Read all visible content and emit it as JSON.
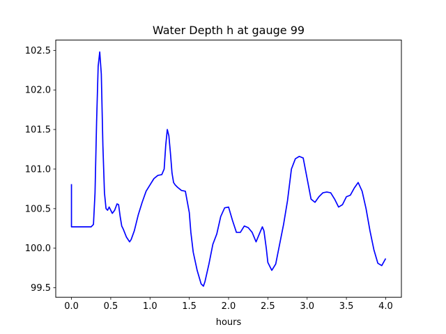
{
  "chart_data": {
    "type": "line",
    "title": "Water Depth h at gauge 99",
    "xlabel": "hours",
    "ylabel": "",
    "xlim": [
      -0.2,
      4.2
    ],
    "ylim": [
      99.38,
      102.63
    ],
    "xticks": [
      0.0,
      0.5,
      1.0,
      1.5,
      2.0,
      2.5,
      3.0,
      3.5,
      4.0
    ],
    "xtick_labels": [
      "0.0",
      "0.5",
      "1.0",
      "1.5",
      "2.0",
      "2.5",
      "3.0",
      "3.5",
      "4.0"
    ],
    "yticks": [
      99.5,
      100.0,
      100.5,
      101.0,
      101.5,
      102.0,
      102.5
    ],
    "ytick_labels": [
      "99.5",
      "100.0",
      "100.5",
      "101.0",
      "101.5",
      "102.0",
      "102.5"
    ],
    "grid": false,
    "color": "#0000ff",
    "series": [
      {
        "x": [
          0.0,
          0.0,
          0.01,
          0.05,
          0.1,
          0.15,
          0.2,
          0.25,
          0.28,
          0.3,
          0.32,
          0.34,
          0.36,
          0.38,
          0.4,
          0.42,
          0.44,
          0.46,
          0.48,
          0.5,
          0.52,
          0.55,
          0.58,
          0.6,
          0.62,
          0.64,
          0.66,
          0.7,
          0.74,
          0.76,
          0.8,
          0.85,
          0.9,
          0.95,
          1.0,
          1.05,
          1.1,
          1.15,
          1.18,
          1.2,
          1.22,
          1.24,
          1.26,
          1.28,
          1.3,
          1.32,
          1.35,
          1.4,
          1.45,
          1.5,
          1.52,
          1.55,
          1.6,
          1.65,
          1.68,
          1.7,
          1.75,
          1.8,
          1.85,
          1.9,
          1.95,
          2.0,
          2.05,
          2.1,
          2.15,
          2.2,
          2.25,
          2.3,
          2.35,
          2.4,
          2.43,
          2.45,
          2.48,
          2.5,
          2.55,
          2.6,
          2.65,
          2.7,
          2.75,
          2.8,
          2.85,
          2.9,
          2.95,
          3.0,
          3.05,
          3.1,
          3.15,
          3.2,
          3.25,
          3.3,
          3.35,
          3.4,
          3.45,
          3.5,
          3.55,
          3.6,
          3.65,
          3.7,
          3.75,
          3.8,
          3.85,
          3.9,
          3.95,
          4.0
        ],
        "values": [
          100.81,
          100.27,
          100.27,
          100.27,
          100.27,
          100.27,
          100.27,
          100.27,
          100.3,
          100.7,
          101.6,
          102.3,
          102.48,
          102.2,
          101.3,
          100.7,
          100.5,
          100.48,
          100.52,
          100.48,
          100.44,
          100.48,
          100.56,
          100.55,
          100.4,
          100.28,
          100.24,
          100.14,
          100.08,
          100.11,
          100.22,
          100.42,
          100.58,
          100.72,
          100.8,
          100.88,
          100.92,
          100.93,
          101.0,
          101.3,
          101.5,
          101.42,
          101.2,
          100.95,
          100.83,
          100.8,
          100.77,
          100.73,
          100.72,
          100.45,
          100.2,
          99.95,
          99.72,
          99.55,
          99.52,
          99.58,
          99.8,
          100.05,
          100.18,
          100.4,
          100.51,
          100.52,
          100.35,
          100.2,
          100.2,
          100.28,
          100.26,
          100.2,
          100.08,
          100.2,
          100.27,
          100.22,
          100.0,
          99.82,
          99.72,
          99.8,
          100.05,
          100.3,
          100.6,
          101.0,
          101.13,
          101.16,
          101.14,
          100.88,
          100.62,
          100.58,
          100.65,
          100.7,
          100.71,
          100.7,
          100.62,
          100.52,
          100.55,
          100.65,
          100.67,
          100.76,
          100.83,
          100.72,
          100.5,
          100.22,
          99.98,
          99.81,
          99.78,
          99.87
        ]
      }
    ]
  }
}
